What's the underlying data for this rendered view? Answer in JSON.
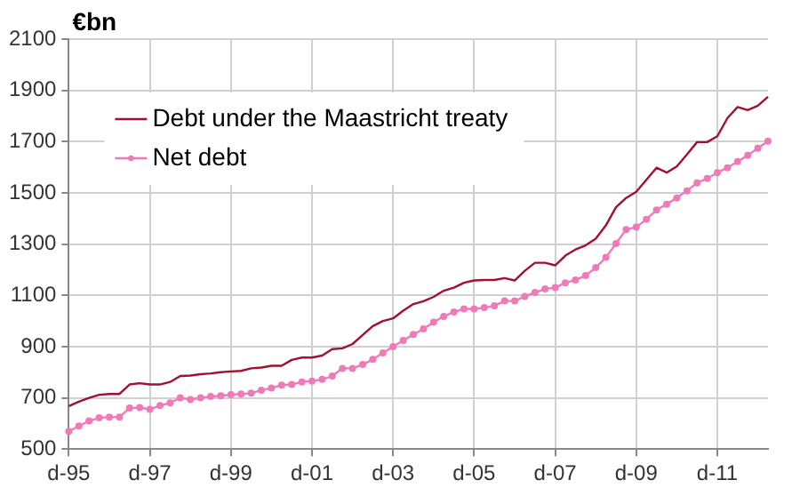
{
  "chart_data": {
    "type": "line",
    "ylabel": "€bn",
    "categories": [
      "d-95",
      null,
      null,
      null,
      null,
      null,
      null,
      null,
      "d-97",
      null,
      null,
      null,
      null,
      null,
      null,
      null,
      "d-99",
      null,
      null,
      null,
      null,
      null,
      null,
      null,
      "d-01",
      null,
      null,
      null,
      null,
      null,
      null,
      null,
      "d-03",
      null,
      null,
      null,
      null,
      null,
      null,
      null,
      "d-05",
      null,
      null,
      null,
      null,
      null,
      null,
      null,
      "d-07",
      null,
      null,
      null,
      null,
      null,
      null,
      null,
      "d-09",
      null,
      null,
      null,
      null,
      null,
      null,
      null,
      "d-11",
      null,
      null,
      null,
      null,
      null
    ],
    "series": [
      {
        "name": "Debt under the Maastricht treaty",
        "color": "#a01030",
        "marker": "none",
        "values": [
          668,
          685,
          700,
          712,
          715,
          715,
          752,
          757,
          752,
          752,
          762,
          785,
          787,
          792,
          795,
          800,
          803,
          805,
          815,
          818,
          825,
          825,
          848,
          857,
          857,
          865,
          890,
          893,
          910,
          945,
          980,
          1000,
          1010,
          1040,
          1066,
          1077,
          1094,
          1118,
          1130,
          1149,
          1158,
          1160,
          1160,
          1167,
          1158,
          1196,
          1227,
          1227,
          1217,
          1255,
          1279,
          1295,
          1321,
          1373,
          1444,
          1480,
          1504,
          1551,
          1598,
          1579,
          1603,
          1650,
          1698,
          1698,
          1721,
          1792,
          1835,
          1823,
          1840,
          1875
        ]
      },
      {
        "name": "Net debt",
        "color": "#f07ab8",
        "marker": "circle",
        "values": [
          569,
          590,
          610,
          622,
          625,
          625,
          660,
          662,
          655,
          670,
          680,
          700,
          693,
          700,
          705,
          708,
          712,
          715,
          718,
          730,
          738,
          750,
          752,
          762,
          765,
          772,
          785,
          815,
          815,
          830,
          850,
          875,
          900,
          924,
          947,
          969,
          995,
          1018,
          1035,
          1047,
          1047,
          1052,
          1059,
          1078,
          1078,
          1096,
          1111,
          1125,
          1130,
          1149,
          1160,
          1177,
          1208,
          1248,
          1302,
          1357,
          1366,
          1397,
          1433,
          1456,
          1480,
          1508,
          1539,
          1556,
          1579,
          1598,
          1622,
          1646,
          1674,
          1702
        ]
      }
    ],
    "ylim": [
      500,
      2100
    ],
    "yticks": [
      500,
      700,
      900,
      1100,
      1300,
      1500,
      1700,
      1900,
      2100
    ],
    "grid": true,
    "legend": "top left"
  }
}
